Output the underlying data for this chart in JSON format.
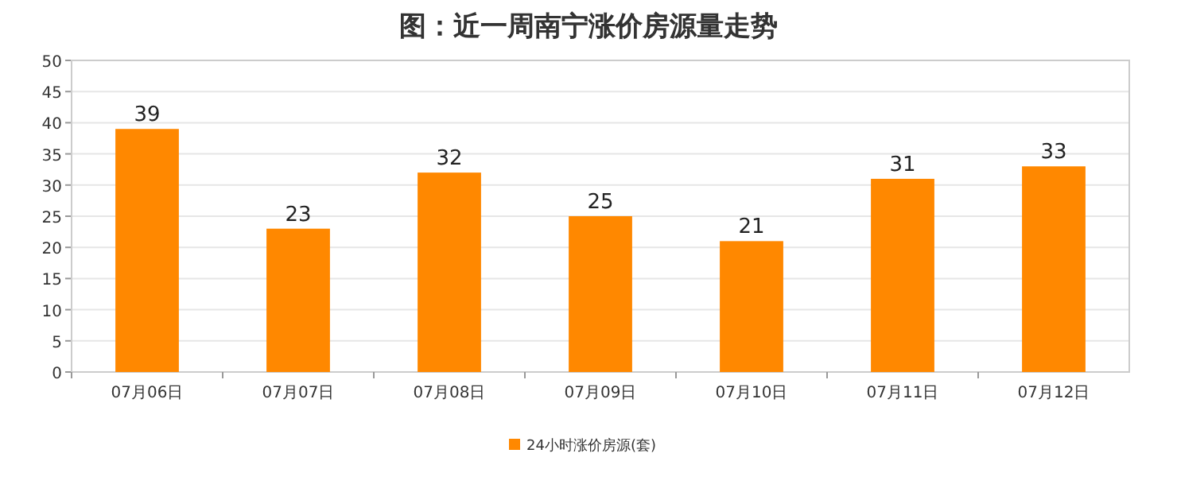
{
  "chart_data": {
    "type": "bar",
    "title": "图：近一周南宁涨价房源量走势",
    "categories": [
      "07月06日",
      "07月07日",
      "07月08日",
      "07月09日",
      "07月10日",
      "07月11日",
      "07月12日"
    ],
    "series": [
      {
        "name": "24小时涨价房源(套)",
        "color": "#ff8800",
        "values": [
          39,
          23,
          32,
          25,
          21,
          31,
          33
        ]
      }
    ],
    "ylim": [
      0,
      50
    ],
    "yticks": [
      0,
      5,
      10,
      15,
      20,
      25,
      30,
      35,
      40,
      45,
      50
    ],
    "grid": "y",
    "legend": "bottom",
    "data_labels": true
  }
}
